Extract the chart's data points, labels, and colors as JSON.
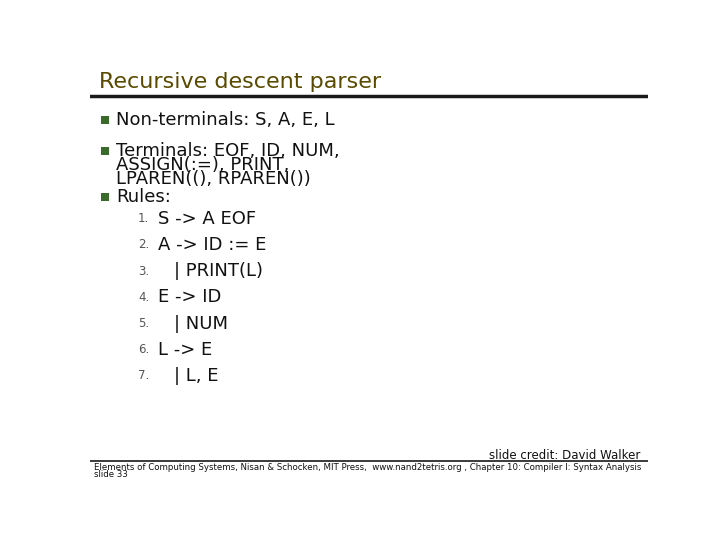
{
  "title": "Recursive descent parser",
  "bg_color": "#ffffff",
  "title_color": "#5a4a00",
  "separator_color": "#1a1a1a",
  "bullet_color": "#3a6b2a",
  "text_color": "#111111",
  "bullet1": "Non-terminals: S, A, E, L",
  "bullet2_line1": "Terminals: EOF, ID, NUM,",
  "bullet2_line2": "ASSIGN(:=), PRINT,",
  "bullet2_line3": "LPAREN((), RPAREN())",
  "bullet3": "Rules:",
  "rules": [
    [
      "1.",
      "S -> A EOF"
    ],
    [
      "2.",
      "A -> ID := E"
    ],
    [
      "3.",
      "| PRINT(L)"
    ],
    [
      "4.",
      "E -> ID"
    ],
    [
      "5.",
      "| NUM"
    ],
    [
      "6.",
      "L -> E"
    ],
    [
      "7.",
      "| L, E"
    ]
  ],
  "footer_credit": "slide credit: David Walker",
  "footer_main": "Elements of Computing Systems, Nisan & Schocken, MIT Press,  www.nand2tetris.org , Chapter 10: Compiler I: Syntax Analysis",
  "footer_slide": "slide 33"
}
